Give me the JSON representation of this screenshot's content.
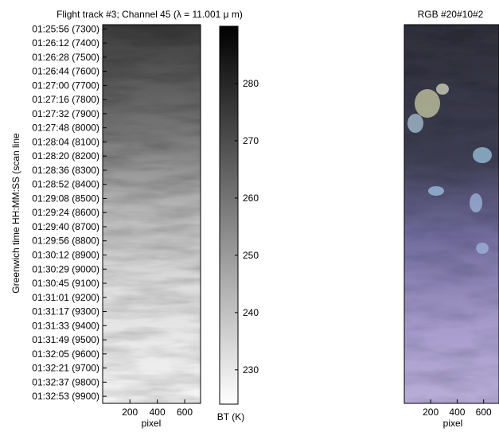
{
  "left_panel": {
    "title": "Flight track #3; Channel 45 (λ = 11.001 μ m)",
    "ylabel": "Greenwich time HH:MM:SS (scan line",
    "xlabel": "pixel",
    "xticks": [
      "200",
      "400",
      "600"
    ],
    "yticks": [
      "01:25:56 (7300)",
      "01:26:12 (7400)",
      "01:26:28 (7500)",
      "01:26:44 (7600)",
      "01:27:00 (7700)",
      "01:27:16 (7800)",
      "01:27:32 (7900)",
      "01:27:48 (8000)",
      "01:28:04 (8100)",
      "01:28:20 (8200)",
      "01:28:36 (8300)",
      "01:28:52 (8400)",
      "01:29:08 (8500)",
      "01:29:24 (8600)",
      "01:29:40 (8700)",
      "01:29:56 (8800)",
      "01:30:12 (8900)",
      "01:30:29 (9000)",
      "01:30:45 (9100)",
      "01:31:01 (9200)",
      "01:31:17 (9300)",
      "01:31:33 (9400)",
      "01:31:49 (9500)",
      "01:32:05 (9600)",
      "01:32:21 (9700)",
      "01:32:37 (9800)",
      "01:32:53 (9900)"
    ]
  },
  "colorbar": {
    "label": "BT (K)",
    "ticks": [
      "280",
      "270",
      "260",
      "250",
      "240",
      "230"
    ]
  },
  "right_panel": {
    "title": "RGB #20#10#2",
    "xlabel": "pixel",
    "xticks": [
      "200",
      "400",
      "600"
    ]
  },
  "chart_data": [
    {
      "type": "heatmap",
      "title": "Flight track #3; Channel 45 (λ = 11.001 μ m)",
      "xlabel": "pixel",
      "ylabel": "Greenwich time HH:MM:SS (scan line",
      "x_ticks": [
        200,
        400,
        600
      ],
      "xlim": [
        1,
        716
      ],
      "y_tick_labels": [
        "01:25:56 (7300)",
        "01:26:12 (7400)",
        "01:26:28 (7500)",
        "01:26:44 (7600)",
        "01:27:00 (7700)",
        "01:27:16 (7800)",
        "01:27:32 (7900)",
        "01:27:48 (8000)",
        "01:28:04 (8100)",
        "01:28:20 (8200)",
        "01:28:36 (8300)",
        "01:28:52 (8400)",
        "01:29:08 (8500)",
        "01:29:24 (8600)",
        "01:29:40 (8700)",
        "01:29:56 (8800)",
        "01:30:12 (8900)",
        "01:30:29 (9000)",
        "01:30:45 (9100)",
        "01:31:01 (9200)",
        "01:31:17 (9300)",
        "01:31:33 (9400)",
        "01:31:49 (9500)",
        "01:32:05 (9600)",
        "01:32:21 (9700)",
        "01:32:37 (9800)",
        "01:32:53 (9900)"
      ],
      "scan_line_range": [
        7270,
        9950
      ],
      "colormap": "gray, dark = high",
      "colorbar_label": "BT (K)",
      "colorbar_ticks": [
        230,
        240,
        250,
        260,
        270,
        280
      ],
      "colorbar_range": [
        224,
        290
      ]
    },
    {
      "type": "heatmap",
      "title": "RGB #20#10#2",
      "xlabel": "pixel",
      "x_ticks": [
        200,
        400,
        600
      ],
      "xlim": [
        1,
        716
      ],
      "colormap": "rgb composite"
    }
  ]
}
